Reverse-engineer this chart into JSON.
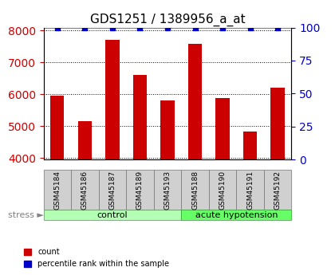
{
  "title": "GDS1251 / 1389956_a_at",
  "samples": [
    "GSM45184",
    "GSM45186",
    "GSM45187",
    "GSM45189",
    "GSM45193",
    "GSM45188",
    "GSM45190",
    "GSM45191",
    "GSM45192"
  ],
  "counts": [
    5950,
    5150,
    7720,
    6600,
    5800,
    7580,
    5880,
    4820,
    6200
  ],
  "percentiles": [
    100,
    100,
    100,
    100,
    100,
    100,
    100,
    100,
    100
  ],
  "groups": [
    "control",
    "control",
    "control",
    "control",
    "control",
    "acute hypotension",
    "acute hypotension",
    "acute hypotension",
    "acute hypotension"
  ],
  "group_colors": {
    "control": "#b3ffb3",
    "acute hypotension": "#66ff66"
  },
  "bar_color": "#cc0000",
  "percentile_color": "#0000cc",
  "ylim_left": [
    3950,
    8100
  ],
  "ylim_right": [
    0,
    100
  ],
  "yticks_left": [
    4000,
    5000,
    6000,
    7000,
    8000
  ],
  "yticks_right": [
    0,
    25,
    50,
    75,
    100
  ],
  "left_tick_color": "#cc0000",
  "right_tick_color": "#0000cc",
  "background_color": "#ffffff",
  "plot_bg_color": "#ffffff",
  "stress_label": "stress",
  "group_label_control": "control",
  "group_label_acute": "acute hypotension"
}
